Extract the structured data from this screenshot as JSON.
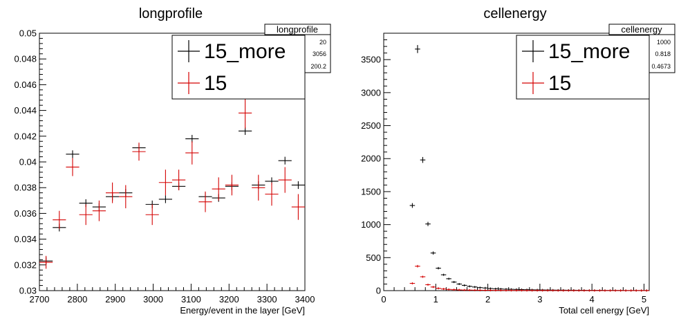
{
  "chart_data": [
    {
      "type": "scatter",
      "title": "longprofile",
      "xlabel": "Energy/event in the layer [GeV]",
      "ylabel": "",
      "xlim": [
        2700,
        3400
      ],
      "ylim": [
        0.03,
        0.05
      ],
      "xticks": [
        2700,
        2800,
        2900,
        3000,
        3100,
        3200,
        3300,
        3400
      ],
      "yticks": [
        0.03,
        0.032,
        0.034,
        0.036,
        0.038,
        0.04,
        0.042,
        0.044,
        0.046,
        0.048,
        0.05
      ],
      "ytick_labels": [
        "0.03",
        "0.032",
        "0.034",
        "0.036",
        "0.038",
        "0.04",
        "0.042",
        "0.044",
        "0.046",
        "0.048",
        "0.05"
      ],
      "grid": false,
      "legend_position": "top-right",
      "stats_box": {
        "title": "longprofile",
        "values": [
          "20",
          "3056",
          "200.2"
        ]
      },
      "series": [
        {
          "name": "15_more",
          "color": "#000000",
          "x": [
            2717.5,
            2752.5,
            2787.5,
            2822.5,
            2857.5,
            2892.5,
            2927.5,
            2962.5,
            2997.5,
            3032.5,
            3067.5,
            3102.5,
            3137.5,
            3172.5,
            3207.5,
            3242.5,
            3277.5,
            3312.5,
            3347.5,
            3382.5
          ],
          "y": [
            0.0323,
            0.0349,
            0.0406,
            0.0368,
            0.0365,
            0.0373,
            0.0376,
            0.0411,
            0.0367,
            0.0371,
            0.0381,
            0.0418,
            0.0373,
            0.0372,
            0.0381,
            0.0424,
            0.0382,
            0.0385,
            0.0401,
            0.0382
          ],
          "yerr": [
            0.0003,
            0.0003,
            0.0003,
            0.0003,
            0.0003,
            0.0003,
            0.0003,
            0.0003,
            0.0003,
            0.0003,
            0.0003,
            0.0003,
            0.0003,
            0.0003,
            0.0003,
            0.0003,
            0.0003,
            0.0003,
            0.0003,
            0.0003
          ]
        },
        {
          "name": "15",
          "color": "#d40000",
          "x": [
            2717.5,
            2752.5,
            2787.5,
            2822.5,
            2857.5,
            2892.5,
            2927.5,
            2962.5,
            2997.5,
            3032.5,
            3067.5,
            3102.5,
            3137.5,
            3172.5,
            3207.5,
            3242.5,
            3277.5,
            3312.5,
            3347.5,
            3382.5
          ],
          "y": [
            0.0322,
            0.0355,
            0.0396,
            0.0359,
            0.0362,
            0.0376,
            0.0373,
            0.0408,
            0.0359,
            0.0384,
            0.0386,
            0.0407,
            0.0369,
            0.0379,
            0.0382,
            0.0438,
            0.038,
            0.0375,
            0.0386,
            0.0365
          ],
          "yerr": [
            0.0005,
            0.0007,
            0.0007,
            0.0008,
            0.0008,
            0.0008,
            0.0009,
            0.0007,
            0.0008,
            0.001,
            0.0008,
            0.0009,
            0.0008,
            0.0009,
            0.0008,
            0.0012,
            0.001,
            0.0009,
            0.001,
            0.001
          ]
        }
      ]
    },
    {
      "type": "scatter",
      "title": "cellenergy",
      "xlabel": "Total cell energy [GeV]",
      "ylabel": "",
      "xlim": [
        0,
        5.1
      ],
      "ylim": [
        0,
        3900
      ],
      "xticks": [
        0,
        1,
        2,
        3,
        4,
        5
      ],
      "yticks": [
        0,
        500,
        1000,
        1500,
        2000,
        2500,
        3000,
        3500
      ],
      "ytick_labels": [
        "0",
        "500",
        "1000",
        "1500",
        "2000",
        "2500",
        "3000",
        "3500"
      ],
      "grid": false,
      "legend_position": "top-right",
      "stats_box": {
        "title": "cellenergy",
        "values": [
          "1000",
          "0.818",
          "0.4673"
        ]
      },
      "series": [
        {
          "name": "15_more",
          "color": "#000000",
          "x": [
            0.55,
            0.65,
            0.75,
            0.85,
            0.95,
            1.05,
            1.15,
            1.25,
            1.35,
            1.45,
            1.55,
            1.65,
            1.75,
            1.85,
            1.95,
            2.05,
            2.15,
            2.25,
            2.35,
            2.45,
            2.55,
            2.65,
            2.75,
            2.85,
            2.95,
            3.05,
            3.15,
            3.25,
            3.35,
            3.45,
            3.55,
            3.65,
            3.75,
            3.85,
            3.95,
            4.05,
            4.15,
            4.25,
            4.35,
            4.45,
            4.55,
            4.65,
            4.75,
            4.85,
            4.95,
            5.05
          ],
          "y": [
            1290,
            3660,
            1980,
            1010,
            570,
            340,
            240,
            180,
            130,
            100,
            80,
            65,
            55,
            45,
            40,
            32,
            28,
            25,
            22,
            20,
            18,
            16,
            14,
            12,
            11,
            10,
            9,
            8,
            7,
            7,
            6,
            6,
            5,
            5,
            4,
            4,
            4,
            3,
            3,
            3,
            3,
            2,
            2,
            2,
            2,
            2
          ]
        },
        {
          "name": "15",
          "color": "#d40000",
          "x": [
            0.55,
            0.65,
            0.75,
            0.85,
            0.95,
            1.05,
            1.15,
            1.25,
            1.35,
            1.45,
            1.55,
            1.65,
            1.75,
            1.85,
            1.95,
            2.05,
            2.15,
            2.25,
            2.35,
            2.45,
            2.55,
            2.65,
            2.75,
            2.85,
            2.95,
            3.05,
            3.15,
            3.25,
            3.35,
            3.45,
            3.55,
            3.65,
            3.75,
            3.85,
            3.95,
            4.05,
            4.15,
            4.25,
            4.35,
            4.45,
            4.55,
            4.65,
            4.75,
            4.85,
            4.95,
            5.05
          ],
          "y": [
            110,
            370,
            210,
            90,
            55,
            35,
            25,
            18,
            14,
            11,
            9,
            8,
            7,
            6,
            5,
            5,
            4,
            4,
            3,
            3,
            3,
            3,
            2,
            2,
            2,
            2,
            2,
            2,
            1,
            1,
            1,
            1,
            1,
            1,
            1,
            1,
            1,
            1,
            1,
            1,
            1,
            1,
            1,
            1,
            1,
            1
          ]
        }
      ]
    }
  ]
}
